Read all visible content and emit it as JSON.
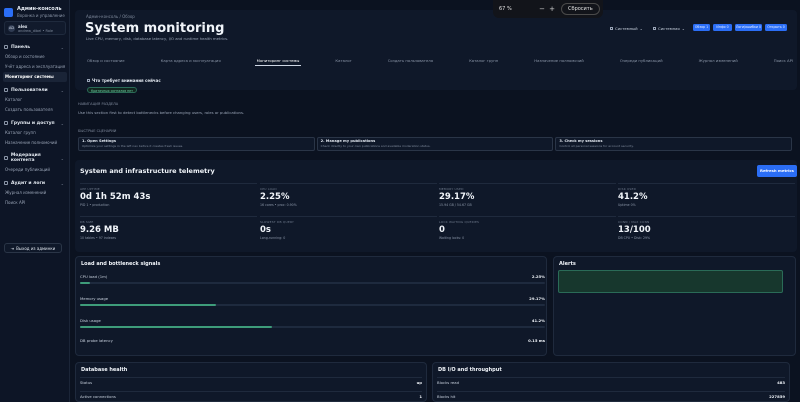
{
  "brand": {
    "title": "Админ-консоль",
    "subtitle": "Воронка и управление"
  },
  "user": {
    "initials": "AD",
    "name": "alex",
    "role": "andrew_dibel • Role"
  },
  "sidebar": {
    "sections": [
      {
        "label": "Панель",
        "items": [
          "Обзор и состояние",
          "Учёт адреса и эксплуатация",
          "Мониторинг системы"
        ]
      },
      {
        "label": "Пользователи",
        "items": [
          "Каталог",
          "Создать пользователя"
        ]
      },
      {
        "label": "Группы и доступ",
        "items": [
          "Каталог групп",
          "Назначение полномочий"
        ]
      },
      {
        "label": "Модерация контента",
        "items": [
          "Очереди публикаций"
        ]
      },
      {
        "label": "Аудит и логи",
        "items": [
          "Журнал изменений",
          "Поиск API"
        ]
      }
    ],
    "active_item": "Мониторинг системы",
    "logout": "Выход из админки"
  },
  "header": {
    "crumb": "Админ-консоль / Обзор",
    "title": "System monitoring",
    "subtitle": "Live CPU, memory, disk, database latency, I/O and runtime health metrics.",
    "theme_select": "Системный",
    "locale_select": "Системная",
    "pills": [
      "Обзор 1",
      "Инфо 0",
      "Логи/ошибки 0",
      "Открыть 0"
    ]
  },
  "tabs": [
    "Обзор и состояние",
    "Карта адреса и эксплуатация",
    "Мониторинг системы",
    "Каталог",
    "Создать пользователя",
    "Каталог групп",
    "Назначение полномочий",
    "Очереди публикаций",
    "Журнал изменений",
    "Поиск API"
  ],
  "active_tab": "Мониторинг системы",
  "attention": {
    "title": "Что требует внимания сейчас",
    "badge": "Критичных сигналов нет"
  },
  "quick_section": {
    "label": "НАВИГАЦИЯ РАЗДЕЛА",
    "desc": "Use this section first to detect bottlenecks before changing users, roles or publications."
  },
  "frameworks": {
    "label": "БЫСТРЫЕ СЦЕНАРИИ",
    "cards": [
      {
        "title": "1. Open Settings",
        "desc": "Optimize your settings in the left nav before it creates fresh issues."
      },
      {
        "title": "2. Manage my publications",
        "desc": "Check directly to your own publications and available moderation status."
      },
      {
        "title": "3. Check my sessions",
        "desc": "Control all personal sessions for account security."
      }
    ]
  },
  "telemetry": {
    "title": "System and infrastructure telemetry",
    "refresh": "Refresh metrics",
    "metrics": [
      {
        "key": "APP UPTIME",
        "value": "0d 1h 52m 43s",
        "sub": "PID 1 • production"
      },
      {
        "key": "CPU LOAD",
        "value": "2.25%",
        "sub": "16 cores • proc: 0.90%"
      },
      {
        "key": "MEMORY USED",
        "value": "29.17%",
        "sub": "15.94 GB / 54.67 GB"
      },
      {
        "key": "DISK USED",
        "value": "41.2%",
        "sub": "Uptime 0%"
      },
      {
        "key": "DB SIZE",
        "value": "9.26 MB",
        "sub": "10 tables • 97 indexes"
      },
      {
        "key": "SLOWEST DB QUERY",
        "value": "0s",
        "sub": "Long-running: 0"
      },
      {
        "key": "LOCK WAITING QUERIES",
        "value": "0",
        "sub": "Waiting locks: 0"
      },
      {
        "key": "CONN / MAX CONN",
        "value": "13/100",
        "sub": "DB CPU • Disk: 29%"
      }
    ]
  },
  "load": {
    "title": "Load and bottleneck signals",
    "rows": [
      {
        "label": "CPU load (1m)",
        "value": "2.25%",
        "level": 0.0225
      },
      {
        "label": "Memory usage",
        "value": "29.17%",
        "level": 0.2917
      },
      {
        "label": "Disk usage",
        "value": "41.2%",
        "level": 0.412
      },
      {
        "label": "DB probe latency",
        "value": "0.15 ms",
        "level": null
      }
    ]
  },
  "alerts": {
    "title": "Alerts"
  },
  "db_health": {
    "title": "Database health",
    "rows": [
      {
        "label": "Status",
        "value": "up"
      },
      {
        "label": "Active connections",
        "value": "1"
      }
    ]
  },
  "db_io": {
    "title": "DB I/O and throughput",
    "rows": [
      {
        "label": "Blocks read",
        "value": "483"
      },
      {
        "label": "Blocks hit",
        "value": "227859"
      }
    ]
  },
  "zoom": {
    "value": "67 %",
    "minus": "−",
    "plus": "+",
    "reset": "Сбросить"
  },
  "colors": {
    "accent": "#2b6ef6",
    "ok": "#3e9c7a",
    "bg": "#0b1220",
    "panel": "#0f1829"
  }
}
